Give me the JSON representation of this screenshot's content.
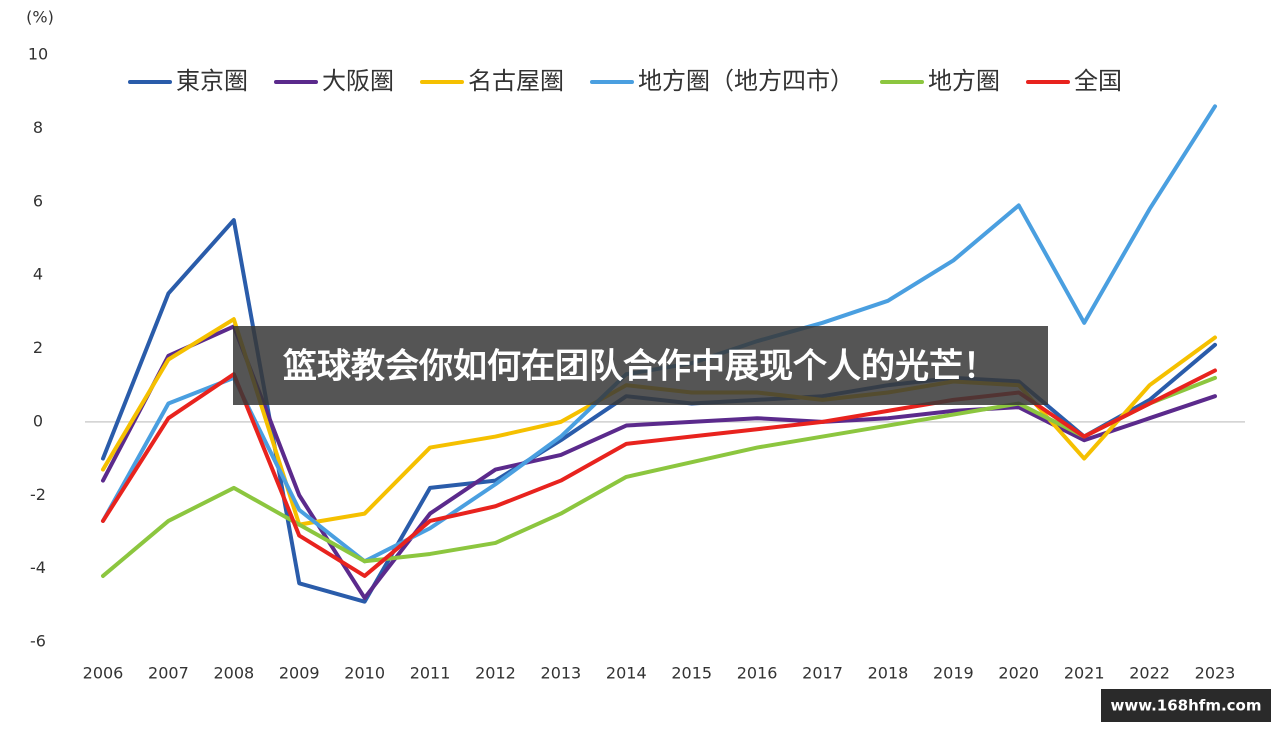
{
  "chart_data": {
    "type": "line",
    "y_label": "(%)",
    "categories": [
      "2006",
      "2007",
      "2008",
      "2009",
      "2010",
      "2011",
      "2012",
      "2013",
      "2014",
      "2015",
      "2016",
      "2017",
      "2018",
      "2019",
      "2020",
      "2021",
      "2022",
      "2023"
    ],
    "series": [
      {
        "name": "東京圏",
        "color": "#2a5caa",
        "values": [
          -1.0,
          3.5,
          5.5,
          -4.4,
          -4.9,
          -1.8,
          -1.6,
          -0.5,
          0.7,
          0.5,
          0.6,
          0.7,
          1.0,
          1.2,
          1.1,
          -0.4,
          0.6,
          2.1
        ]
      },
      {
        "name": "大阪圏",
        "color": "#5b2a8c",
        "values": [
          -1.6,
          1.8,
          2.6,
          -2.0,
          -4.8,
          -2.5,
          -1.3,
          -0.9,
          -0.1,
          0.0,
          0.1,
          0.0,
          0.1,
          0.3,
          0.4,
          -0.5,
          0.1,
          0.7
        ]
      },
      {
        "name": "名古屋圏",
        "color": "#f5c000",
        "values": [
          -1.3,
          1.7,
          2.8,
          -2.8,
          -2.5,
          -0.7,
          -0.4,
          0.0,
          1.0,
          0.8,
          0.8,
          0.6,
          0.8,
          1.1,
          1.0,
          -1.0,
          1.0,
          2.3
        ]
      },
      {
        "name": "地方圏（地方四市）",
        "color": "#4a9fe0",
        "values": [
          -2.7,
          0.5,
          1.2,
          -2.4,
          -3.8,
          -2.9,
          -1.7,
          -0.4,
          1.3,
          1.6,
          2.2,
          2.7,
          3.3,
          4.4,
          5.9,
          2.7,
          5.8,
          8.6
        ]
      },
      {
        "name": "地方圏",
        "color": "#8cc63f",
        "values": [
          -4.2,
          -2.7,
          -1.8,
          -2.8,
          -3.8,
          -3.6,
          -3.3,
          -2.5,
          -1.5,
          -1.1,
          -0.7,
          -0.4,
          -0.1,
          0.2,
          0.5,
          -0.4,
          0.5,
          1.2
        ]
      },
      {
        "name": "全国",
        "color": "#e8231e",
        "values": [
          -2.7,
          0.1,
          1.3,
          -3.1,
          -4.2,
          -2.7,
          -2.3,
          -1.6,
          -0.6,
          -0.4,
          -0.2,
          0.0,
          0.3,
          0.6,
          0.8,
          -0.4,
          0.5,
          1.4
        ]
      }
    ],
    "ylim": [
      -6,
      10
    ],
    "yticks": [
      -6,
      -4,
      -2,
      0,
      2,
      4,
      6,
      8,
      10
    ],
    "grid": false,
    "legend": "top"
  },
  "banner": "篮球教会你如何在团队合作中展现个人的光芒！",
  "watermark": "www.168hfm.com"
}
